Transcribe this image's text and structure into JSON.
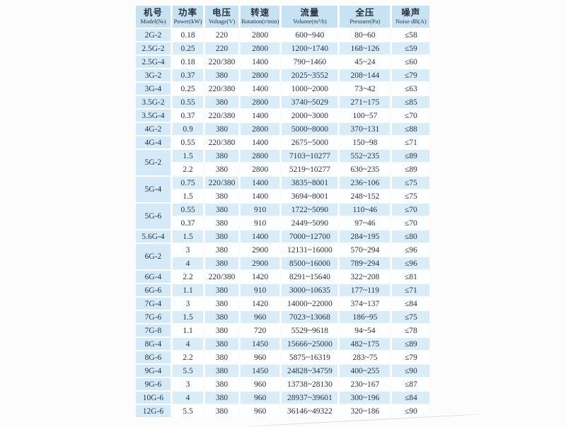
{
  "colors": {
    "header_bg": "#c7e2f3",
    "model_col_bg": "#d4eaf8",
    "row_alt_bg": "#d9edf9",
    "row_bg": "#fdfeff",
    "ink": "#2a3340",
    "page_bg": "#fcfcfc"
  },
  "table": {
    "headers": [
      {
        "zh": "机号",
        "en": "Model(№)"
      },
      {
        "zh": "功率",
        "en": "Power(kW)"
      },
      {
        "zh": "电压",
        "en": "Voltage(V)"
      },
      {
        "zh": "转速",
        "en": "Rotation(r/min)"
      },
      {
        "zh": "流量",
        "en": "Volume(m³/h)"
      },
      {
        "zh": "全压",
        "en": "Pressure(Pa)"
      },
      {
        "zh": "噪声",
        "en": "Noise dB(A)"
      }
    ],
    "rows": [
      {
        "model": "2G-2",
        "rowspan": 1,
        "power": "0.18",
        "voltage": "220",
        "rotation": "2800",
        "volume": "600~940",
        "pressure": "80~60",
        "noise": "≤58"
      },
      {
        "model": "2.5G-2",
        "rowspan": 1,
        "power": "0.25",
        "voltage": "220",
        "rotation": "2800",
        "volume": "1200~1740",
        "pressure": "168~126",
        "noise": "≤59"
      },
      {
        "model": "2.5G-4",
        "rowspan": 1,
        "power": "0.18",
        "voltage": "220/380",
        "rotation": "1400",
        "volume": "790~1460",
        "pressure": "45~24",
        "noise": "≤60"
      },
      {
        "model": "3G-2",
        "rowspan": 1,
        "power": "0.37",
        "voltage": "380",
        "rotation": "2800",
        "volume": "2025~3552",
        "pressure": "208~144",
        "noise": "≤79"
      },
      {
        "model": "3G-4",
        "rowspan": 1,
        "power": "0.25",
        "voltage": "220/380",
        "rotation": "1400",
        "volume": "1000~2000",
        "pressure": "73~42",
        "noise": "≤63"
      },
      {
        "model": "3.5G-2",
        "rowspan": 1,
        "power": "0.55",
        "voltage": "380",
        "rotation": "2800",
        "volume": "3740~5029",
        "pressure": "271~175",
        "noise": "≤85"
      },
      {
        "model": "3.5G-4",
        "rowspan": 1,
        "power": "0.37",
        "voltage": "220/380",
        "rotation": "1400",
        "volume": "2000~3000",
        "pressure": "100~57",
        "noise": "≤70"
      },
      {
        "model": "4G-2",
        "rowspan": 1,
        "power": "0.9",
        "voltage": "380",
        "rotation": "2800",
        "volume": "5000~8000",
        "pressure": "370~131",
        "noise": "≤88"
      },
      {
        "model": "4G-4",
        "rowspan": 1,
        "power": "0.55",
        "voltage": "220/380",
        "rotation": "1400",
        "volume": "2675~5000",
        "pressure": "150~98",
        "noise": "≤71"
      },
      {
        "model": "5G-2",
        "rowspan": 2,
        "power": "1.5",
        "voltage": "380",
        "rotation": "2800",
        "volume": "7103~10277",
        "pressure": "552~235",
        "noise": "≤89"
      },
      {
        "power": "2.2",
        "voltage": "380",
        "rotation": "2800",
        "volume": "5219~10277",
        "pressure": "630~235",
        "noise": "≤89"
      },
      {
        "model": "5G-4",
        "rowspan": 2,
        "power": "0.75",
        "voltage": "220/380",
        "rotation": "1400",
        "volume": "3835~8001",
        "pressure": "236~106",
        "noise": "≤75"
      },
      {
        "power": "1.5",
        "voltage": "380",
        "rotation": "1400",
        "volume": "3694~8001",
        "pressure": "248~152",
        "noise": "≤75"
      },
      {
        "model": "5G-6",
        "rowspan": 2,
        "power": "0.55",
        "voltage": "380",
        "rotation": "910",
        "volume": "1722~5090",
        "pressure": "110~46",
        "noise": "≤70"
      },
      {
        "power": "0.37",
        "voltage": "380",
        "rotation": "910",
        "volume": "2449~5090",
        "pressure": "97~46",
        "noise": "≤70"
      },
      {
        "model": "5.6G-4",
        "rowspan": 1,
        "power": "1.5",
        "voltage": "380",
        "rotation": "1400",
        "volume": "7000~12700",
        "pressure": "284~195",
        "noise": "≤80"
      },
      {
        "model": "6G-2",
        "rowspan": 2,
        "power": "3",
        "voltage": "380",
        "rotation": "2900",
        "volume": "12131~16000",
        "pressure": "570~294",
        "noise": "≤96"
      },
      {
        "power": "4",
        "voltage": "380",
        "rotation": "2900",
        "volume": "8500~16000",
        "pressure": "789~294",
        "noise": "≤96"
      },
      {
        "model": "6G-4",
        "rowspan": 1,
        "power": "2.2",
        "voltage": "220/380",
        "rotation": "1420",
        "volume": "8291~15640",
        "pressure": "322~208",
        "noise": "≤81"
      },
      {
        "model": "6G-6",
        "rowspan": 1,
        "power": "1.1",
        "voltage": "380",
        "rotation": "910",
        "volume": "3000~10635",
        "pressure": "177~119",
        "noise": "≤71"
      },
      {
        "model": "7G-4",
        "rowspan": 1,
        "power": "3",
        "voltage": "380",
        "rotation": "1420",
        "volume": "14000~22000",
        "pressure": "374~137",
        "noise": "≤84"
      },
      {
        "model": "7G-6",
        "rowspan": 1,
        "power": "1.5",
        "voltage": "380",
        "rotation": "960",
        "volume": "7023~13068",
        "pressure": "186~95",
        "noise": "≤75"
      },
      {
        "model": "7G-8",
        "rowspan": 1,
        "power": "1.1",
        "voltage": "380",
        "rotation": "720",
        "volume": "5529~9618",
        "pressure": "94~54",
        "noise": "≤78"
      },
      {
        "model": "8G-4",
        "rowspan": 1,
        "power": "4",
        "voltage": "380",
        "rotation": "1450",
        "volume": "15666~25000",
        "pressure": "482~175",
        "noise": "≤89"
      },
      {
        "model": "8G-6",
        "rowspan": 1,
        "power": "2.2",
        "voltage": "380",
        "rotation": "960",
        "volume": "5875~16319",
        "pressure": "283~75",
        "noise": "≤79"
      },
      {
        "model": "9G-4",
        "rowspan": 1,
        "power": "5.5",
        "voltage": "380",
        "rotation": "1450",
        "volume": "24828~34759",
        "pressure": "400~255",
        "noise": "≤90"
      },
      {
        "model": "9G-6",
        "rowspan": 1,
        "power": "3",
        "voltage": "380",
        "rotation": "960",
        "volume": "13738~28130",
        "pressure": "230~167",
        "noise": "≤87"
      },
      {
        "model": "10G-6",
        "rowspan": 1,
        "power": "4",
        "voltage": "380",
        "rotation": "960",
        "volume": "28937~39601",
        "pressure": "300~196",
        "noise": "≤84"
      },
      {
        "model": "12G-6",
        "rowspan": 1,
        "power": "5.5",
        "voltage": "380",
        "rotation": "960",
        "volume": "36146~49322",
        "pressure": "320~186",
        "noise": "≤90"
      }
    ]
  }
}
